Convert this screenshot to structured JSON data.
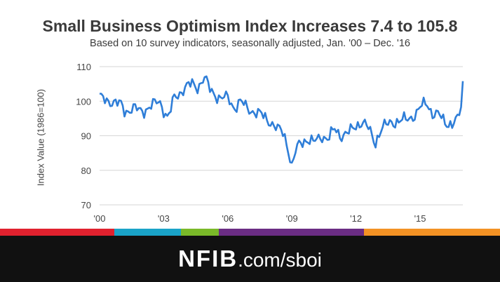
{
  "header": {
    "title": "Small Business Optimism Index Increases 7.4 to 105.8",
    "subtitle": "Based on 10 survey indicators, seasonally adjusted, Jan. '00 – Dec. '16"
  },
  "chart_data": {
    "type": "line",
    "title": "Small Business Optimism Index Increases 7.4 to 105.8",
    "subtitle": "Based on 10 survey indicators, seasonally adjusted, Jan. '00 – Dec. '16",
    "xlabel": "",
    "ylabel": "Index Value (1986=100)",
    "ylim": [
      70,
      110
    ],
    "yticks": [
      70,
      80,
      90,
      100,
      110
    ],
    "xticks": [
      "'00",
      "'03",
      "'06",
      "'09",
      "'12",
      "'15"
    ],
    "grid": "horizontal",
    "series_color": "#2f7ed8",
    "series": [
      {
        "x": [
          2000.0,
          2000.5,
          2001.0,
          2001.2,
          2001.6,
          2002.0,
          2002.5,
          2002.8,
          2003.2,
          2003.5,
          2003.7,
          2004.0,
          2004.3,
          2004.6,
          2004.9,
          2005.2,
          2005.6,
          2006.0,
          2006.3,
          2006.6,
          2006.9,
          2007.2,
          2007.6,
          2008.0,
          2008.3,
          2008.6,
          2008.8,
          2009.0,
          2009.2,
          2009.4,
          2009.7,
          2010.0,
          2010.4,
          2010.7,
          2011.0,
          2011.3,
          2011.7,
          2012.0,
          2012.3,
          2012.6,
          2012.9,
          2013.2,
          2013.6,
          2014.0,
          2014.4,
          2014.8,
          2015.0,
          2015.3,
          2015.6,
          2015.9,
          2016.2,
          2016.5,
          2016.8,
          2016.92,
          2017.0
        ],
        "y": [
          101,
          100,
          99,
          97,
          98,
          97,
          99,
          100,
          95,
          101,
          102,
          104,
          105,
          104,
          107,
          103,
          101,
          101,
          98,
          100,
          98,
          97,
          96,
          94,
          92,
          91,
          87,
          81,
          86,
          88,
          89,
          88,
          90,
          89,
          92,
          90,
          91,
          93,
          94,
          92,
          88,
          92,
          94,
          94,
          95,
          96,
          98,
          100,
          96,
          96,
          94,
          93,
          95,
          98.4,
          105.8
        ]
      }
    ]
  },
  "footer": {
    "brand": "NFIB",
    "url": ".com/sboi",
    "stripe_colors": [
      "#e0212e",
      "#1aa3c8",
      "#7ab929",
      "#6b2d84",
      "#f39224"
    ]
  }
}
